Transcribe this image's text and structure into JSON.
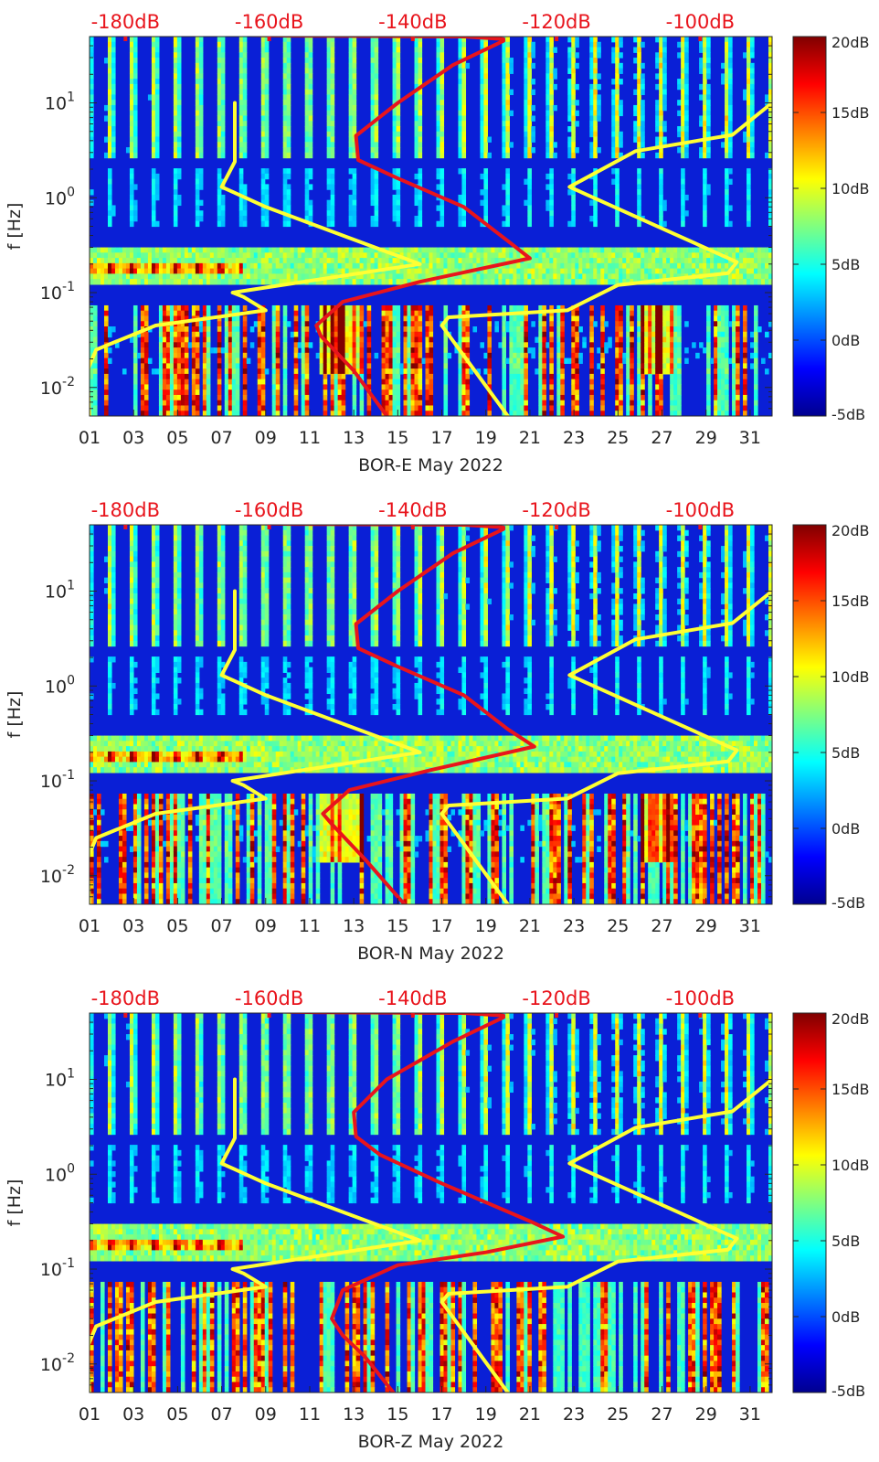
{
  "chart_data": [
    {
      "type": "heatmap",
      "xlabel": "BOR-E May 2022",
      "ylabel": "f [Hz]",
      "x_ticks": [
        "01",
        "03",
        "05",
        "07",
        "09",
        "11",
        "13",
        "15",
        "17",
        "19",
        "21",
        "23",
        "25",
        "27",
        "29",
        "31"
      ],
      "x_range_days": [
        1,
        32
      ],
      "y_scale": "log",
      "y_range_hz": [
        0.005,
        50
      ],
      "y_ticks": [
        {
          "exp": "1"
        },
        {
          "exp": "0"
        },
        {
          "exp": "-1"
        },
        {
          "exp": "-2"
        }
      ],
      "top_axis_labels": [
        "-180dB",
        "-160dB",
        "-140dB",
        "-120dB",
        "-100dB"
      ],
      "top_axis_range_db": [
        -185,
        -90
      ],
      "colorbar": {
        "min": -5,
        "max": 20,
        "labels": [
          "20dB",
          "15dB",
          "10dB",
          "5dB",
          "0dB",
          "-5dB"
        ],
        "colormap": "jet"
      },
      "series": [
        {
          "color": "#ffff33",
          "points": [
            [
              1,
              0.005
            ],
            [
              0.9,
              0.015
            ],
            [
              1.3,
              0.025
            ],
            [
              4,
              0.045
            ],
            [
              9,
              0.065
            ],
            [
              8,
              0.09
            ],
            [
              7.5,
              0.1
            ],
            [
              16,
              0.2
            ],
            [
              9,
              0.8
            ],
            [
              7,
              1.3
            ],
            [
              7.6,
              2.4
            ],
            [
              7.6,
              10
            ]
          ]
        },
        {
          "color": "#ffff33",
          "points": [
            [
              20,
              0.005
            ],
            [
              17,
              0.045
            ],
            [
              17.3,
              0.055
            ],
            [
              22.7,
              0.065
            ],
            [
              25,
              0.12
            ],
            [
              30,
              0.16
            ],
            [
              30.4,
              0.21
            ],
            [
              22.8,
              1.3
            ],
            [
              25.8,
              3.1
            ],
            [
              30.2,
              4.6
            ],
            [
              32,
              10
            ]
          ]
        },
        {
          "color": "#e8141c",
          "points": [
            [
              14.5,
              0.005
            ],
            [
              13,
              0.015
            ],
            [
              11.5,
              0.035
            ],
            [
              11.3,
              0.045
            ],
            [
              12.5,
              0.08
            ],
            [
              16,
              0.13
            ],
            [
              21,
              0.23
            ],
            [
              20,
              0.35
            ],
            [
              18,
              0.8
            ],
            [
              15,
              1.6
            ],
            [
              13.2,
              2.5
            ],
            [
              13.1,
              4.5
            ],
            [
              15,
              10
            ],
            [
              17.5,
              25
            ],
            [
              19.8,
              45
            ]
          ]
        },
        {
          "color": "#e8141c",
          "points": [
            [
              7.4,
              52
            ],
            [
              10,
              51
            ],
            [
              18,
              50
            ],
            [
              19.8,
              47
            ]
          ]
        }
      ]
    },
    {
      "type": "heatmap",
      "xlabel": "BOR-N May 2022",
      "ylabel": "f [Hz]",
      "x_ticks": [
        "01",
        "03",
        "05",
        "07",
        "09",
        "11",
        "13",
        "15",
        "17",
        "19",
        "21",
        "23",
        "25",
        "27",
        "29",
        "31"
      ],
      "x_range_days": [
        1,
        32
      ],
      "y_scale": "log",
      "y_range_hz": [
        0.005,
        50
      ],
      "y_ticks": [
        {
          "exp": "1"
        },
        {
          "exp": "0"
        },
        {
          "exp": "-1"
        },
        {
          "exp": "-2"
        }
      ],
      "top_axis_labels": [
        "-180dB",
        "-160dB",
        "-140dB",
        "-120dB",
        "-100dB"
      ],
      "top_axis_range_db": [
        -185,
        -90
      ],
      "colorbar": {
        "min": -5,
        "max": 20,
        "labels": [
          "20dB",
          "15dB",
          "10dB",
          "5dB",
          "0dB",
          "-5dB"
        ],
        "colormap": "jet"
      },
      "series": [
        {
          "color": "#ffff33",
          "points": [
            [
              1,
              0.005
            ],
            [
              0.9,
              0.015
            ],
            [
              1.3,
              0.025
            ],
            [
              4,
              0.045
            ],
            [
              9,
              0.065
            ],
            [
              8,
              0.09
            ],
            [
              7.5,
              0.1
            ],
            [
              16,
              0.2
            ],
            [
              9,
              0.8
            ],
            [
              7,
              1.3
            ],
            [
              7.6,
              2.4
            ],
            [
              7.6,
              10
            ]
          ]
        },
        {
          "color": "#ffff33",
          "points": [
            [
              20,
              0.005
            ],
            [
              17,
              0.045
            ],
            [
              17.3,
              0.055
            ],
            [
              22.7,
              0.065
            ],
            [
              25,
              0.12
            ],
            [
              30,
              0.16
            ],
            [
              30.4,
              0.21
            ],
            [
              22.8,
              1.3
            ],
            [
              25.8,
              3.1
            ],
            [
              30.2,
              4.6
            ],
            [
              32,
              10
            ]
          ]
        },
        {
          "color": "#e8141c",
          "points": [
            [
              15.3,
              0.005
            ],
            [
              13.5,
              0.015
            ],
            [
              12,
              0.035
            ],
            [
              11.6,
              0.045
            ],
            [
              12.8,
              0.08
            ],
            [
              16.5,
              0.13
            ],
            [
              21.2,
              0.23
            ],
            [
              20,
              0.35
            ],
            [
              18,
              0.8
            ],
            [
              15,
              1.6
            ],
            [
              13.2,
              2.5
            ],
            [
              13.1,
              4.5
            ],
            [
              15,
              10
            ],
            [
              17.5,
              25
            ],
            [
              19.8,
              45
            ]
          ]
        },
        {
          "color": "#e8141c",
          "points": [
            [
              8,
              52
            ],
            [
              10,
              51
            ],
            [
              18,
              50
            ],
            [
              19.8,
              47
            ]
          ]
        }
      ]
    },
    {
      "type": "heatmap",
      "xlabel": "BOR-Z May 2022",
      "ylabel": "f [Hz]",
      "x_ticks": [
        "01",
        "03",
        "05",
        "07",
        "09",
        "11",
        "13",
        "15",
        "17",
        "19",
        "21",
        "23",
        "25",
        "27",
        "29",
        "31"
      ],
      "x_range_days": [
        1,
        32
      ],
      "y_scale": "log",
      "y_range_hz": [
        0.005,
        50
      ],
      "y_ticks": [
        {
          "exp": "1"
        },
        {
          "exp": "0"
        },
        {
          "exp": "-1"
        },
        {
          "exp": "-2"
        }
      ],
      "top_axis_labels": [
        "-180dB",
        "-160dB",
        "-140dB",
        "-120dB",
        "-100dB"
      ],
      "top_axis_range_db": [
        -185,
        -90
      ],
      "colorbar": {
        "min": -5,
        "max": 20,
        "labels": [
          "20dB",
          "15dB",
          "10dB",
          "5dB",
          "0dB",
          "-5dB"
        ],
        "colormap": "jet"
      },
      "series": [
        {
          "color": "#ffff33",
          "points": [
            [
              1,
              0.005
            ],
            [
              0.9,
              0.015
            ],
            [
              1.3,
              0.025
            ],
            [
              4,
              0.045
            ],
            [
              9,
              0.065
            ],
            [
              8,
              0.09
            ],
            [
              7.5,
              0.1
            ],
            [
              16,
              0.2
            ],
            [
              9,
              0.8
            ],
            [
              7,
              1.3
            ],
            [
              7.6,
              2.4
            ],
            [
              7.6,
              10
            ]
          ]
        },
        {
          "color": "#ffff33",
          "points": [
            [
              20,
              0.005
            ],
            [
              17,
              0.045
            ],
            [
              17.3,
              0.055
            ],
            [
              22.7,
              0.065
            ],
            [
              25,
              0.12
            ],
            [
              30,
              0.16
            ],
            [
              30.4,
              0.21
            ],
            [
              22.8,
              1.3
            ],
            [
              25.8,
              3.1
            ],
            [
              30.2,
              4.6
            ],
            [
              32,
              10
            ]
          ]
        },
        {
          "color": "#e8141c",
          "points": [
            [
              14.8,
              0.005
            ],
            [
              13.5,
              0.012
            ],
            [
              12.5,
              0.02
            ],
            [
              12,
              0.03
            ],
            [
              12.5,
              0.06
            ],
            [
              15,
              0.11
            ],
            [
              19,
              0.15
            ],
            [
              22.5,
              0.22
            ],
            [
              21,
              0.32
            ],
            [
              17,
              0.8
            ],
            [
              14.2,
              1.6
            ],
            [
              13.1,
              2.5
            ],
            [
              13,
              4.5
            ],
            [
              14.5,
              10
            ],
            [
              17.5,
              25
            ],
            [
              19.8,
              45
            ]
          ]
        },
        {
          "color": "#e8141c",
          "points": [
            [
              9,
              52
            ],
            [
              11,
              51
            ],
            [
              18,
              50
            ],
            [
              19.8,
              47
            ]
          ]
        }
      ]
    }
  ]
}
